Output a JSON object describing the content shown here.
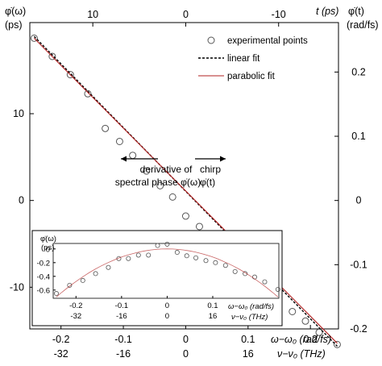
{
  "labels": {
    "left_axis_top": "φ̇(ω)",
    "left_axis_bottom": "(ps)",
    "top_axis": "t (ps)",
    "right_axis_top": "φ̇(t)",
    "right_axis_bottom": "(rad/fs)",
    "bottom_axis_1": "ω−ω₀ (rad/fs)",
    "bottom_axis_2": "ν−ν₀ (THz)",
    "left_annotation_1": "derivative of",
    "left_annotation_2": "spectral phase φ̇(ω)",
    "right_annotation_1": "chirp",
    "right_annotation_2": "φ̇(t)",
    "inset_y_top": "φ̇(ω)",
    "inset_y_bottom": "(ps)",
    "inset_x_1": "ω−ω₀ (rad/fs)",
    "inset_x_2": "ν−ν₀ (THz)"
  },
  "legend": {
    "points": "experimental points",
    "linear": "linear fit",
    "parabolic": "parabolic fit"
  },
  "colors": {
    "axis": "#000000",
    "points": "#555555",
    "linear_fit": "#000000",
    "parabolic_fit": "#b22222"
  },
  "chart_data": [
    {
      "type": "scatter",
      "xlabel": "ω−ω₀ (rad/fs)",
      "xlabel_secondary": "ν−ν₀ (THz)",
      "ylabel": "φ̇(ω) (ps)",
      "top_label": "t (ps)",
      "right_label": "φ̇(t) (rad/fs)",
      "xlim": [
        -0.25,
        0.245
      ],
      "ylim": [
        -14.8,
        20.5
      ],
      "x_ticks": [
        -0.2,
        -0.1,
        0,
        0.1,
        0.2
      ],
      "x_tick_labels": [
        "-0.2",
        "-0.1",
        "0",
        "0.1",
        "0.2"
      ],
      "x2_tick_labels": [
        "-32",
        "-16",
        "0",
        "16",
        "32"
      ],
      "y_ticks": [
        -10,
        0,
        10
      ],
      "y_tick_labels": [
        "-10",
        "0",
        "10"
      ],
      "top_ticks": [
        10,
        0,
        -10
      ],
      "top_tick_labels": [
        "10",
        "0",
        "-10"
      ],
      "right_ticks": [
        0.2,
        0.1,
        0,
        -0.1,
        -0.2
      ],
      "right_tick_labels": [
        "0.2",
        "0.1",
        "0",
        "-0.1",
        "-0.2"
      ],
      "legend_position": "top-right",
      "series": [
        {
          "name": "experimental points",
          "style": "circles",
          "x": [
            -0.243,
            -0.214,
            -0.185,
            -0.157,
            -0.129,
            -0.106,
            -0.085,
            -0.063,
            -0.041,
            -0.021,
            0.0,
            0.022,
            0.043,
            0.063,
            0.085,
            0.106,
            0.128,
            0.149,
            0.171,
            0.192,
            0.214,
            0.243
          ],
          "y": [
            18.7,
            16.6,
            14.5,
            12.3,
            8.3,
            6.8,
            5.2,
            3.4,
            1.7,
            0.4,
            -1.8,
            -3.0,
            -4.4,
            -5.9,
            -7.6,
            -9.0,
            -10.4,
            -11.7,
            -12.8,
            -13.9,
            -15.2,
            -16.6
          ]
        },
        {
          "name": "linear fit",
          "style": "dashed",
          "x": [
            -0.243,
            0.243
          ],
          "y": [
            18.9,
            -16.8
          ]
        },
        {
          "name": "parabolic fit",
          "style": "solid",
          "x": [
            -0.243,
            -0.2,
            -0.15,
            -0.1,
            -0.05,
            0.0,
            0.05,
            0.1,
            0.15,
            0.2,
            0.243
          ],
          "y": [
            18.7,
            15.57,
            11.94,
            8.33,
            4.72,
            1.1,
            -2.51,
            -6.12,
            -9.73,
            -13.34,
            -16.45
          ]
        }
      ]
    },
    {
      "type": "scatter",
      "inset": true,
      "xlabel": "ω−ω₀ (rad/fs)",
      "xlabel_secondary": "ν−ν₀ (THz)",
      "ylabel": "φ̇(ω) (ps)",
      "xlim": [
        -0.25,
        0.245
      ],
      "ylim": [
        -0.72,
        0.08
      ],
      "x_ticks": [
        -0.2,
        -0.1,
        0,
        0.1
      ],
      "x_tick_labels": [
        "-0.2",
        "-0.1",
        "0",
        "0.1"
      ],
      "x2_tick_labels": [
        "-32",
        "-16",
        "0",
        "16"
      ],
      "y_ticks": [
        0,
        -0.2,
        -0.4,
        -0.6
      ],
      "y_tick_labels": [
        "0",
        "-0.2",
        "-0.4",
        "-0.6"
      ],
      "series": [
        {
          "name": "experimental points",
          "style": "circles",
          "x": [
            -0.243,
            -0.214,
            -0.185,
            -0.157,
            -0.129,
            -0.106,
            -0.085,
            -0.063,
            -0.041,
            -0.021,
            0.0,
            0.022,
            0.043,
            0.063,
            0.085,
            0.106,
            0.128,
            0.149,
            0.171,
            0.192,
            0.214,
            0.243
          ],
          "y": [
            -0.65,
            -0.53,
            -0.46,
            -0.36,
            -0.27,
            -0.14,
            -0.14,
            -0.09,
            -0.09,
            0.05,
            0.07,
            -0.05,
            -0.1,
            -0.13,
            -0.17,
            -0.2,
            -0.24,
            -0.33,
            -0.36,
            -0.41,
            -0.48,
            -0.59
          ]
        },
        {
          "name": "parabolic fit",
          "style": "solid",
          "x": [
            -0.243,
            -0.2,
            -0.15,
            -0.1,
            -0.05,
            0.0,
            0.05,
            0.1,
            0.15,
            0.2,
            0.243
          ],
          "y": [
            -0.7,
            -0.47,
            -0.26,
            -0.11,
            -0.02,
            0.0,
            -0.03,
            -0.12,
            -0.27,
            -0.48,
            -0.7
          ]
        }
      ]
    }
  ]
}
